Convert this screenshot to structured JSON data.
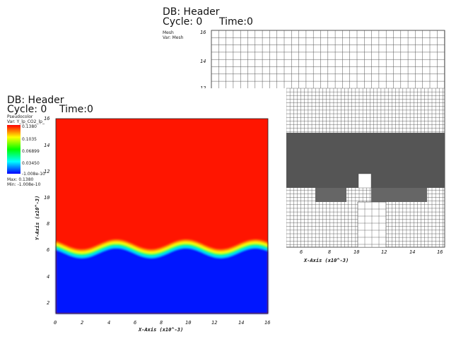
{
  "back_window": {
    "db_header": "DB: Header",
    "cycle": "Cycle: 0",
    "time": "Time:0",
    "legend": {
      "line1": "Mesh",
      "line2": "Var: Mesh"
    },
    "y_ticks": [
      "16",
      "14",
      "12"
    ],
    "x_ticks": [
      "6",
      "8",
      "10",
      "12",
      "14",
      "16"
    ],
    "x_axis_label": "X-Axis (x10^-3)"
  },
  "front_window": {
    "db_header": "DB: Header",
    "cycle": "Cycle: 0",
    "time": "Time:0",
    "legend": {
      "type": "Pseudocolor",
      "var": "Var: Y_lp_CO2_lp_",
      "levels": [
        "0.1380",
        "0.1035",
        "0.06899",
        "0.03450",
        "-1.008e-10"
      ],
      "max": "Max:  0.1380",
      "min": "Min:  -1.008e-10"
    },
    "y_ticks": [
      "16",
      "14",
      "12",
      "10",
      "8",
      "6",
      "4",
      "2"
    ],
    "x_ticks": [
      "0",
      "2",
      "4",
      "6",
      "8",
      "10",
      "12",
      "14",
      "16"
    ],
    "x_axis_label": "X-Axis (x10^-3)",
    "y_axis_label": "Y-Axis (x10^-3)",
    "colors": {
      "high": "#ff1a00",
      "low": "#0018ff"
    }
  }
}
